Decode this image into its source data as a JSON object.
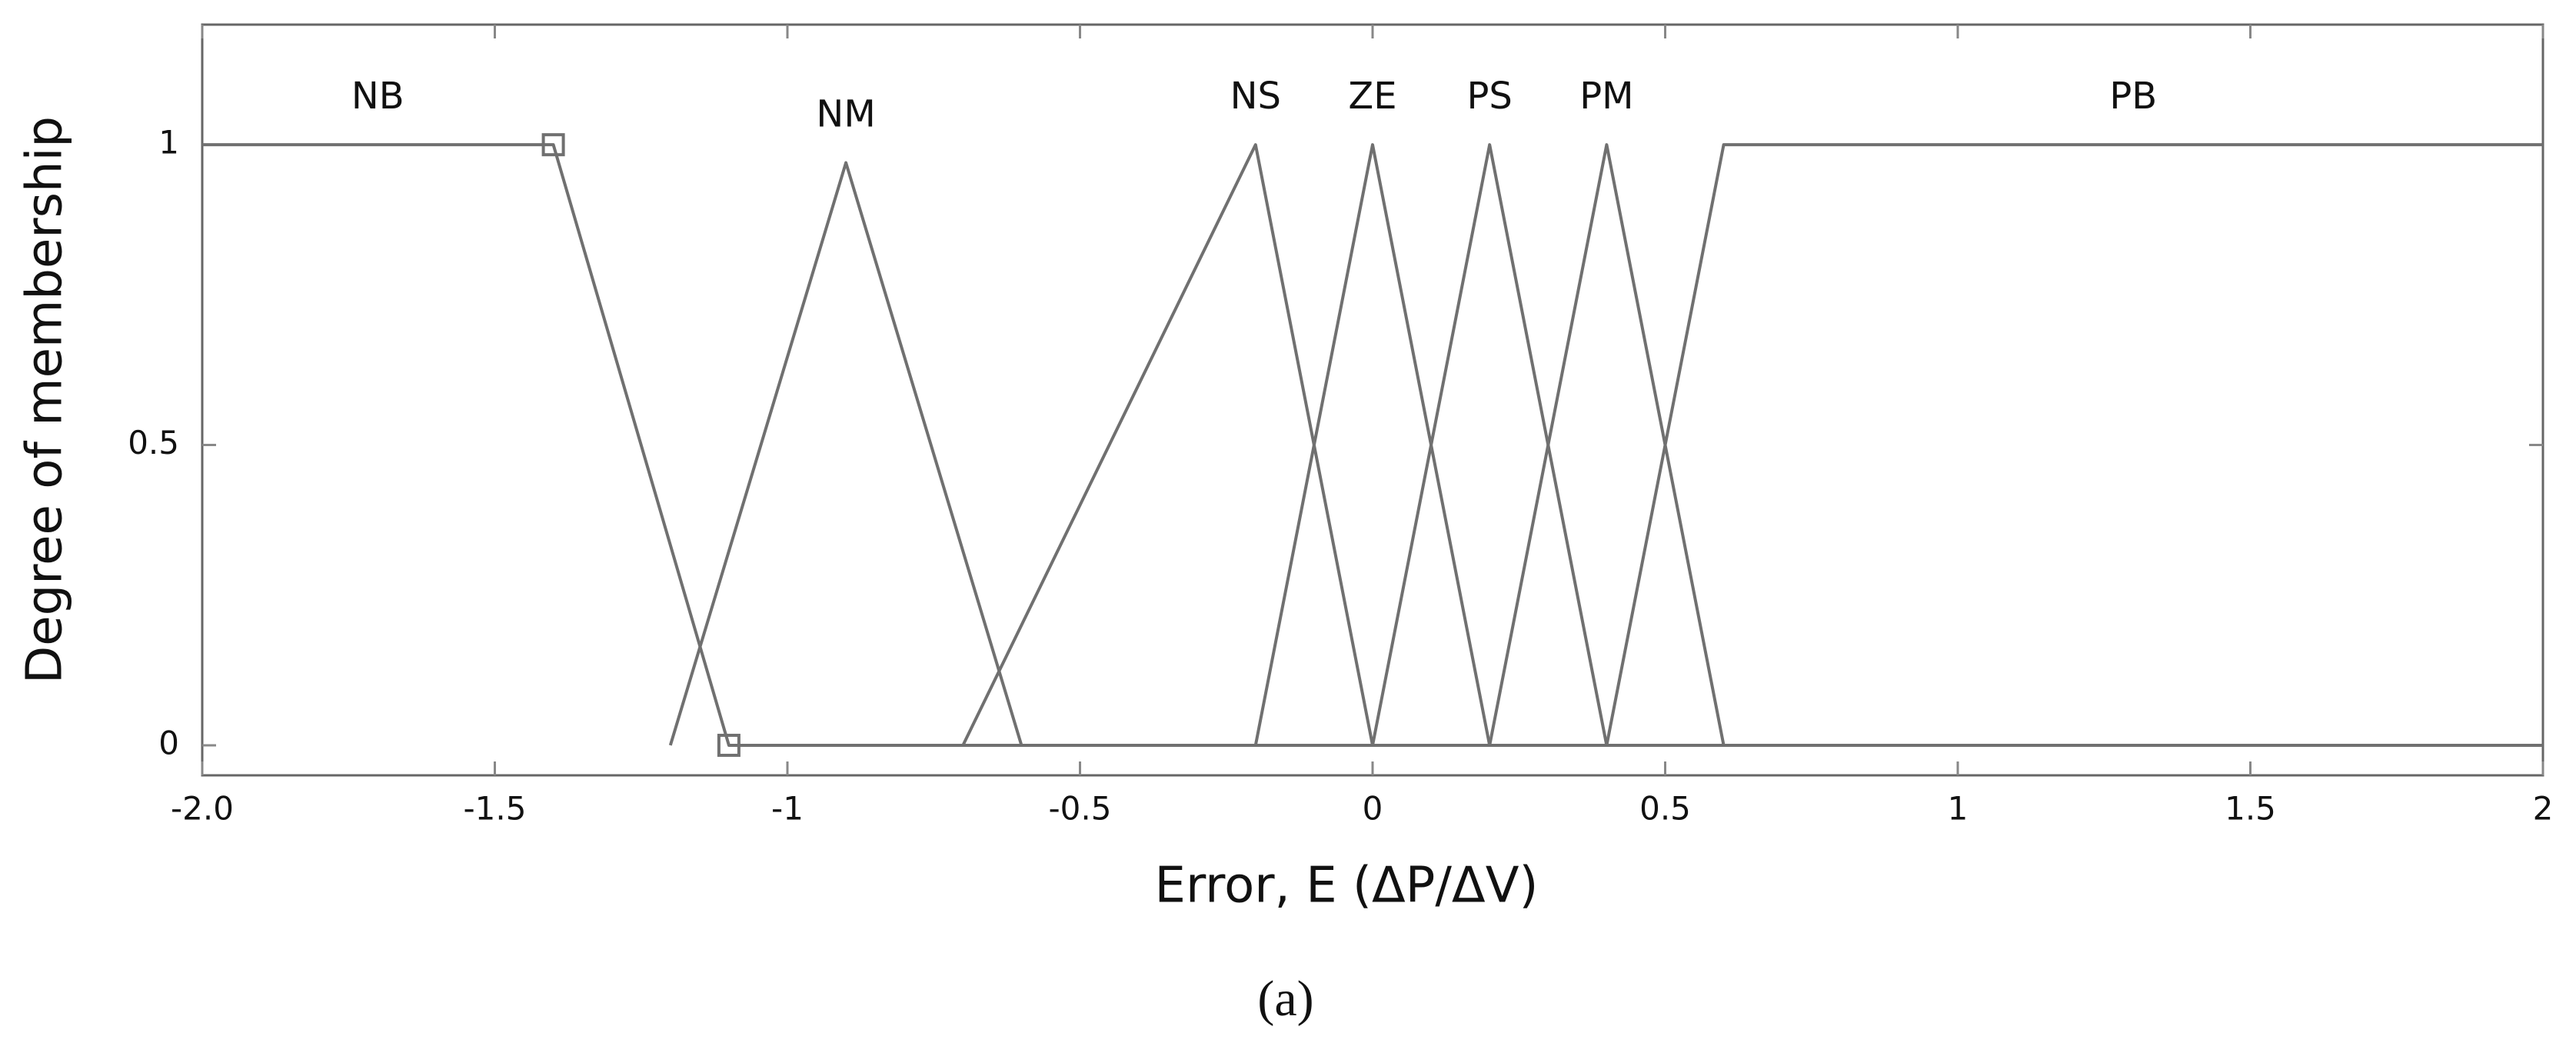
{
  "chart_data": {
    "type": "line",
    "xlabel": "Error, E (ΔP/ΔV)",
    "ylabel": "Degree of membership",
    "caption": "(a)",
    "xlim": [
      -2,
      2
    ],
    "ylim": [
      -0.05,
      1.2
    ],
    "xticks": [
      {
        "value": -2,
        "label": "-2.0"
      },
      -1.5,
      -1,
      -0.5,
      0,
      0.5,
      1,
      1.5,
      2
    ],
    "yticks": [
      0,
      0.5,
      1
    ],
    "series": [
      {
        "name": "NB",
        "color": "#707070",
        "x": [
          -2,
          -1.4,
          -1.1,
          2
        ],
        "values": [
          1,
          1,
          0,
          0
        ],
        "markers": [
          null,
          "square",
          "square",
          null
        ]
      },
      {
        "name": "NM",
        "color": "#707070",
        "x": [
          -1.2,
          -0.9,
          -0.6
        ],
        "values": [
          0,
          0.97,
          0
        ]
      },
      {
        "name": "NS",
        "color": "#707070",
        "x": [
          -0.7,
          -0.2,
          0
        ],
        "values": [
          0,
          1,
          0
        ]
      },
      {
        "name": "ZE",
        "color": "#707070",
        "x": [
          -0.2,
          0,
          0.2
        ],
        "values": [
          0,
          1,
          0
        ]
      },
      {
        "name": "PS",
        "color": "#707070",
        "x": [
          0,
          0.2,
          0.4
        ],
        "values": [
          0,
          1,
          0
        ]
      },
      {
        "name": "PM",
        "color": "#707070",
        "x": [
          0.2,
          0.4,
          0.6
        ],
        "values": [
          0,
          1,
          0
        ]
      },
      {
        "name": "PB",
        "color": "#707070",
        "x": [
          0.4,
          0.6,
          2
        ],
        "values": [
          0,
          1,
          1
        ]
      }
    ]
  }
}
